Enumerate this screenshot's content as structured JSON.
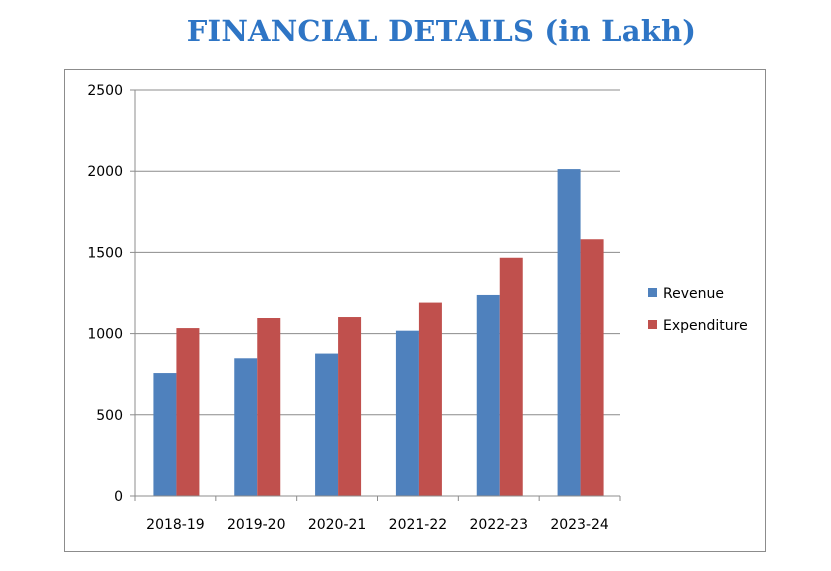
{
  "title": "FINANCIAL DETAILS (in Lakh)",
  "chart_data": {
    "type": "bar",
    "title": "FINANCIAL DETAILS (in Lakh)",
    "categories": [
      "2018-19",
      "2019-20",
      "2020-21",
      "2021-22",
      "2022-23",
      "2023-24"
    ],
    "series": [
      {
        "name": "Revenue",
        "color": "#4f81bd",
        "values": [
          757,
          848,
          877,
          1018,
          1238,
          2013
        ]
      },
      {
        "name": "Expenditure",
        "color": "#c0504d",
        "values": [
          1034,
          1096,
          1102,
          1191,
          1467,
          1581
        ]
      }
    ],
    "ylim": [
      0,
      2500
    ],
    "yticks": [
      "0",
      "500",
      "1000",
      "1500",
      "2000",
      "2500"
    ],
    "grid": true,
    "legend": "right"
  }
}
